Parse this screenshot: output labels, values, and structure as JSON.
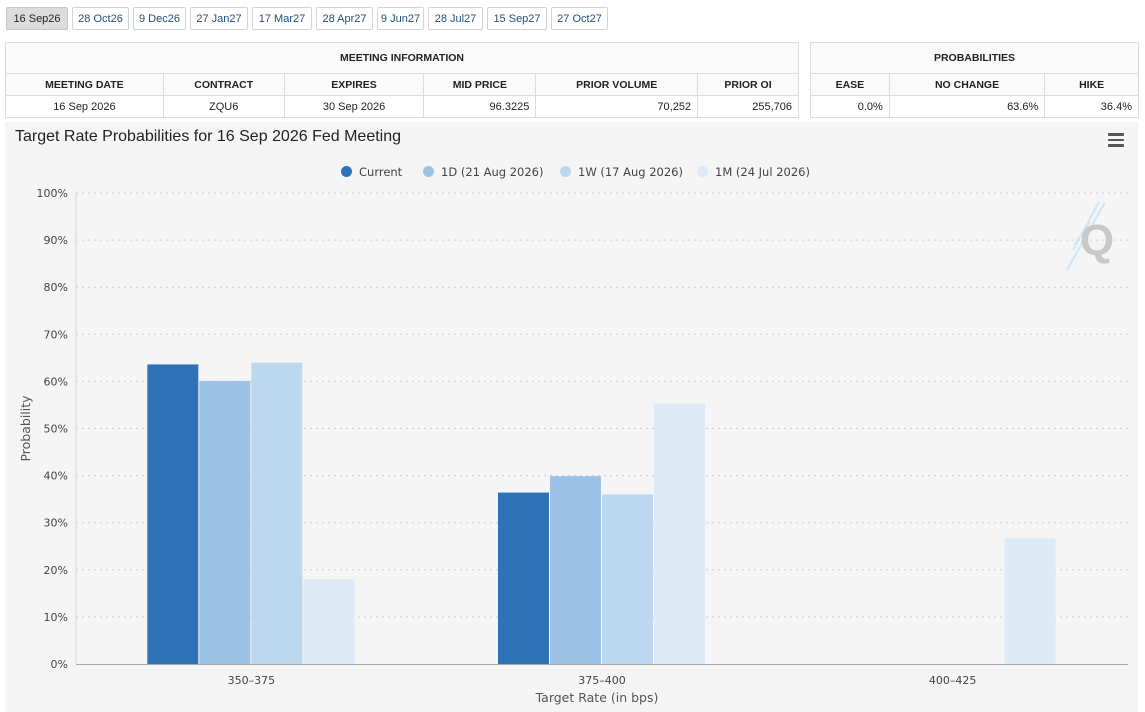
{
  "tabs": [
    "16 Sep26",
    "28 Oct26",
    "9 Dec26",
    "27 Jan27",
    "17 Mar27",
    "28 Apr27",
    "9 Jun27",
    "28 Jul27",
    "15 Sep27",
    "27 Oct27"
  ],
  "active_tab": 0,
  "meeting_info": {
    "title": "MEETING INFORMATION",
    "headers": [
      "MEETING DATE",
      "CONTRACT",
      "EXPIRES",
      "MID PRICE",
      "PRIOR VOLUME",
      "PRIOR OI"
    ],
    "row": [
      "16 Sep 2026",
      "ZQU6",
      "30 Sep 2026",
      "96.3225",
      "70,252",
      "255,706"
    ]
  },
  "probabilities": {
    "title": "PROBABILITIES",
    "headers": [
      "EASE",
      "NO CHANGE",
      "HIKE"
    ],
    "row": [
      "0.0%",
      "63.6%",
      "36.4%"
    ]
  },
  "chart_menu_icon": "hamburger-menu-icon",
  "watermark": "Q",
  "chart_data": {
    "type": "bar",
    "title": "Target Rate Probabilities for 16 Sep 2026 Fed Meeting",
    "xlabel": "Target Rate (in bps)",
    "ylabel": "Probability",
    "categories": [
      "350–375",
      "375–400",
      "400–425"
    ],
    "ylim": [
      0,
      100
    ],
    "yticks": [
      0,
      10,
      20,
      30,
      40,
      50,
      60,
      70,
      80,
      90,
      100
    ],
    "ytick_labels": [
      "0%",
      "10%",
      "20%",
      "30%",
      "40%",
      "50%",
      "60%",
      "70%",
      "80%",
      "90%",
      "100%"
    ],
    "grid": true,
    "legend_position": "top-center",
    "series": [
      {
        "name": "Current",
        "color": "#2e73b8",
        "values": [
          63.6,
          36.4,
          0
        ]
      },
      {
        "name": "1D (21 Aug 2026)",
        "color": "#9cc3e6",
        "values": [
          60.1,
          39.9,
          0
        ]
      },
      {
        "name": "1W (17 Aug 2026)",
        "color": "#bdd7ee",
        "values": [
          64.0,
          36.0,
          0
        ]
      },
      {
        "name": "1M (24 Jul 2026)",
        "color": "#deebf7",
        "values": [
          18.0,
          55.3,
          26.7
        ]
      }
    ]
  }
}
